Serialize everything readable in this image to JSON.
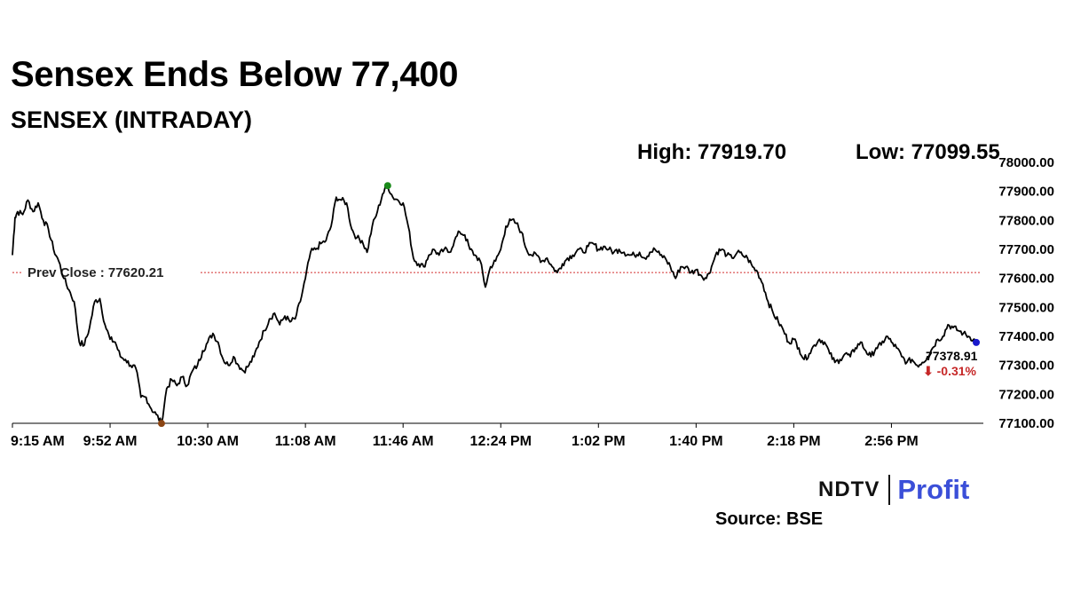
{
  "header": {
    "title": "Sensex Ends Below 77,400",
    "subtitle": "SENSEX (INTRADAY)",
    "high_label": "High: 77919.70",
    "low_label": "Low: 77099.55"
  },
  "footer": {
    "brand_left": "NDTV",
    "brand_right": "Profit",
    "source": "Source: BSE"
  },
  "colors": {
    "line": "#000000",
    "prev_close_line": "#d32f2f",
    "high_marker": "#1a8a1a",
    "low_marker": "#8b4513",
    "last_marker": "#1a1acc",
    "change_negative": "#c62828",
    "brand_blue": "#3b4fd8"
  },
  "chart_data": {
    "type": "line",
    "x_tick_labels": [
      "9:15 AM",
      "9:52 AM",
      "10:30 AM",
      "11:08 AM",
      "11:46 AM",
      "12:24 PM",
      "1:02 PM",
      "1:40 PM",
      "2:18 PM",
      "2:56 PM"
    ],
    "y_tick_labels": [
      "77100.00",
      "77200.00",
      "77300.00",
      "77400.00",
      "77500.00",
      "77600.00",
      "77700.00",
      "77800.00",
      "77900.00",
      "78000.00"
    ],
    "ylim": [
      77100,
      78000
    ],
    "series": [
      {
        "values": [
          [
            0,
            77680
          ],
          [
            1,
            77810
          ],
          [
            2,
            77830
          ],
          [
            4,
            77820
          ],
          [
            6,
            77870
          ],
          [
            8,
            77830
          ],
          [
            10,
            77860
          ],
          [
            12,
            77800
          ],
          [
            14,
            77770
          ],
          [
            16,
            77700
          ],
          [
            18,
            77660
          ],
          [
            20,
            77600
          ],
          [
            22,
            77560
          ],
          [
            24,
            77520
          ],
          [
            26,
            77380
          ],
          [
            28,
            77370
          ],
          [
            30,
            77430
          ],
          [
            32,
            77520
          ],
          [
            34,
            77530
          ],
          [
            36,
            77440
          ],
          [
            38,
            77390
          ],
          [
            40,
            77380
          ],
          [
            42,
            77330
          ],
          [
            44,
            77320
          ],
          [
            46,
            77300
          ],
          [
            48,
            77290
          ],
          [
            50,
            77190
          ],
          [
            52,
            77190
          ],
          [
            54,
            77150
          ],
          [
            56,
            77130
          ],
          [
            58,
            77100
          ],
          [
            60,
            77220
          ],
          [
            62,
            77250
          ],
          [
            64,
            77230
          ],
          [
            66,
            77260
          ],
          [
            68,
            77230
          ],
          [
            70,
            77280
          ],
          [
            72,
            77300
          ],
          [
            74,
            77350
          ],
          [
            76,
            77380
          ],
          [
            78,
            77410
          ],
          [
            80,
            77380
          ],
          [
            82,
            77320
          ],
          [
            84,
            77300
          ],
          [
            86,
            77330
          ],
          [
            88,
            77300
          ],
          [
            90,
            77280
          ],
          [
            92,
            77300
          ],
          [
            94,
            77330
          ],
          [
            96,
            77380
          ],
          [
            98,
            77420
          ],
          [
            100,
            77460
          ],
          [
            102,
            77480
          ],
          [
            104,
            77440
          ],
          [
            106,
            77470
          ],
          [
            108,
            77450
          ],
          [
            110,
            77460
          ],
          [
            112,
            77520
          ],
          [
            114,
            77600
          ],
          [
            116,
            77690
          ],
          [
            118,
            77700
          ],
          [
            120,
            77720
          ],
          [
            122,
            77730
          ],
          [
            124,
            77780
          ],
          [
            126,
            77880
          ],
          [
            128,
            77870
          ],
          [
            130,
            77860
          ],
          [
            132,
            77770
          ],
          [
            134,
            77740
          ],
          [
            136,
            77730
          ],
          [
            138,
            77690
          ],
          [
            140,
            77780
          ],
          [
            142,
            77830
          ],
          [
            144,
            77890
          ],
          [
            146,
            77919.7
          ],
          [
            148,
            77880
          ],
          [
            150,
            77870
          ],
          [
            152,
            77860
          ],
          [
            154,
            77780
          ],
          [
            156,
            77670
          ],
          [
            158,
            77650
          ],
          [
            160,
            77640
          ],
          [
            162,
            77680
          ],
          [
            164,
            77700
          ],
          [
            166,
            77680
          ],
          [
            168,
            77700
          ],
          [
            170,
            77690
          ],
          [
            172,
            77730
          ],
          [
            174,
            77760
          ],
          [
            176,
            77750
          ],
          [
            178,
            77700
          ],
          [
            180,
            77680
          ],
          [
            182,
            77660
          ],
          [
            184,
            77570
          ],
          [
            186,
            77640
          ],
          [
            188,
            77660
          ],
          [
            190,
            77700
          ],
          [
            192,
            77780
          ],
          [
            194,
            77800
          ],
          [
            196,
            77790
          ],
          [
            198,
            77760
          ],
          [
            200,
            77700
          ],
          [
            202,
            77680
          ],
          [
            204,
            77680
          ],
          [
            206,
            77660
          ],
          [
            208,
            77670
          ],
          [
            210,
            77640
          ],
          [
            212,
            77620
          ],
          [
            214,
            77650
          ],
          [
            216,
            77670
          ],
          [
            218,
            77680
          ],
          [
            220,
            77700
          ],
          [
            222,
            77690
          ],
          [
            224,
            77710
          ],
          [
            226,
            77720
          ],
          [
            228,
            77700
          ],
          [
            230,
            77710
          ],
          [
            232,
            77700
          ],
          [
            234,
            77690
          ],
          [
            236,
            77700
          ],
          [
            238,
            77690
          ],
          [
            240,
            77680
          ],
          [
            242,
            77680
          ],
          [
            244,
            77690
          ],
          [
            246,
            77670
          ],
          [
            248,
            77690
          ],
          [
            250,
            77700
          ],
          [
            252,
            77680
          ],
          [
            254,
            77670
          ],
          [
            256,
            77640
          ],
          [
            258,
            77600
          ],
          [
            260,
            77640
          ],
          [
            262,
            77640
          ],
          [
            264,
            77620
          ],
          [
            266,
            77630
          ],
          [
            268,
            77610
          ],
          [
            270,
            77600
          ],
          [
            272,
            77640
          ],
          [
            274,
            77690
          ],
          [
            276,
            77700
          ],
          [
            278,
            77680
          ],
          [
            280,
            77670
          ],
          [
            282,
            77690
          ],
          [
            284,
            77680
          ],
          [
            286,
            77670
          ],
          [
            288,
            77640
          ],
          [
            290,
            77620
          ],
          [
            292,
            77580
          ],
          [
            294,
            77520
          ],
          [
            296,
            77480
          ],
          [
            298,
            77450
          ],
          [
            300,
            77420
          ],
          [
            302,
            77380
          ],
          [
            304,
            77390
          ],
          [
            306,
            77360
          ],
          [
            308,
            77320
          ],
          [
            310,
            77340
          ],
          [
            312,
            77370
          ],
          [
            314,
            77390
          ],
          [
            316,
            77380
          ],
          [
            318,
            77340
          ],
          [
            320,
            77310
          ],
          [
            322,
            77320
          ],
          [
            324,
            77340
          ],
          [
            326,
            77330
          ],
          [
            328,
            77360
          ],
          [
            330,
            77380
          ],
          [
            332,
            77350
          ],
          [
            334,
            77330
          ],
          [
            336,
            77360
          ],
          [
            338,
            77370
          ],
          [
            340,
            77400
          ],
          [
            342,
            77380
          ],
          [
            344,
            77360
          ],
          [
            346,
            77330
          ],
          [
            348,
            77310
          ],
          [
            350,
            77320
          ],
          [
            352,
            77300
          ],
          [
            354,
            77310
          ],
          [
            356,
            77330
          ],
          [
            358,
            77360
          ],
          [
            360,
            77390
          ],
          [
            362,
            77400
          ],
          [
            364,
            77440
          ],
          [
            366,
            77430
          ],
          [
            368,
            77420
          ],
          [
            370,
            77410
          ],
          [
            372,
            77400
          ],
          [
            374,
            77390
          ],
          [
            375,
            77378.91
          ]
        ]
      }
    ],
    "prev_close_label": "Prev Close : 77620.21",
    "prev_close_value": 77620.21,
    "last_value_label": "77378.91",
    "last_change_label": "⬇ -0.31%",
    "last_value": 77378.91,
    "high": 77919.7,
    "low": 77099.55,
    "grid": false
  }
}
